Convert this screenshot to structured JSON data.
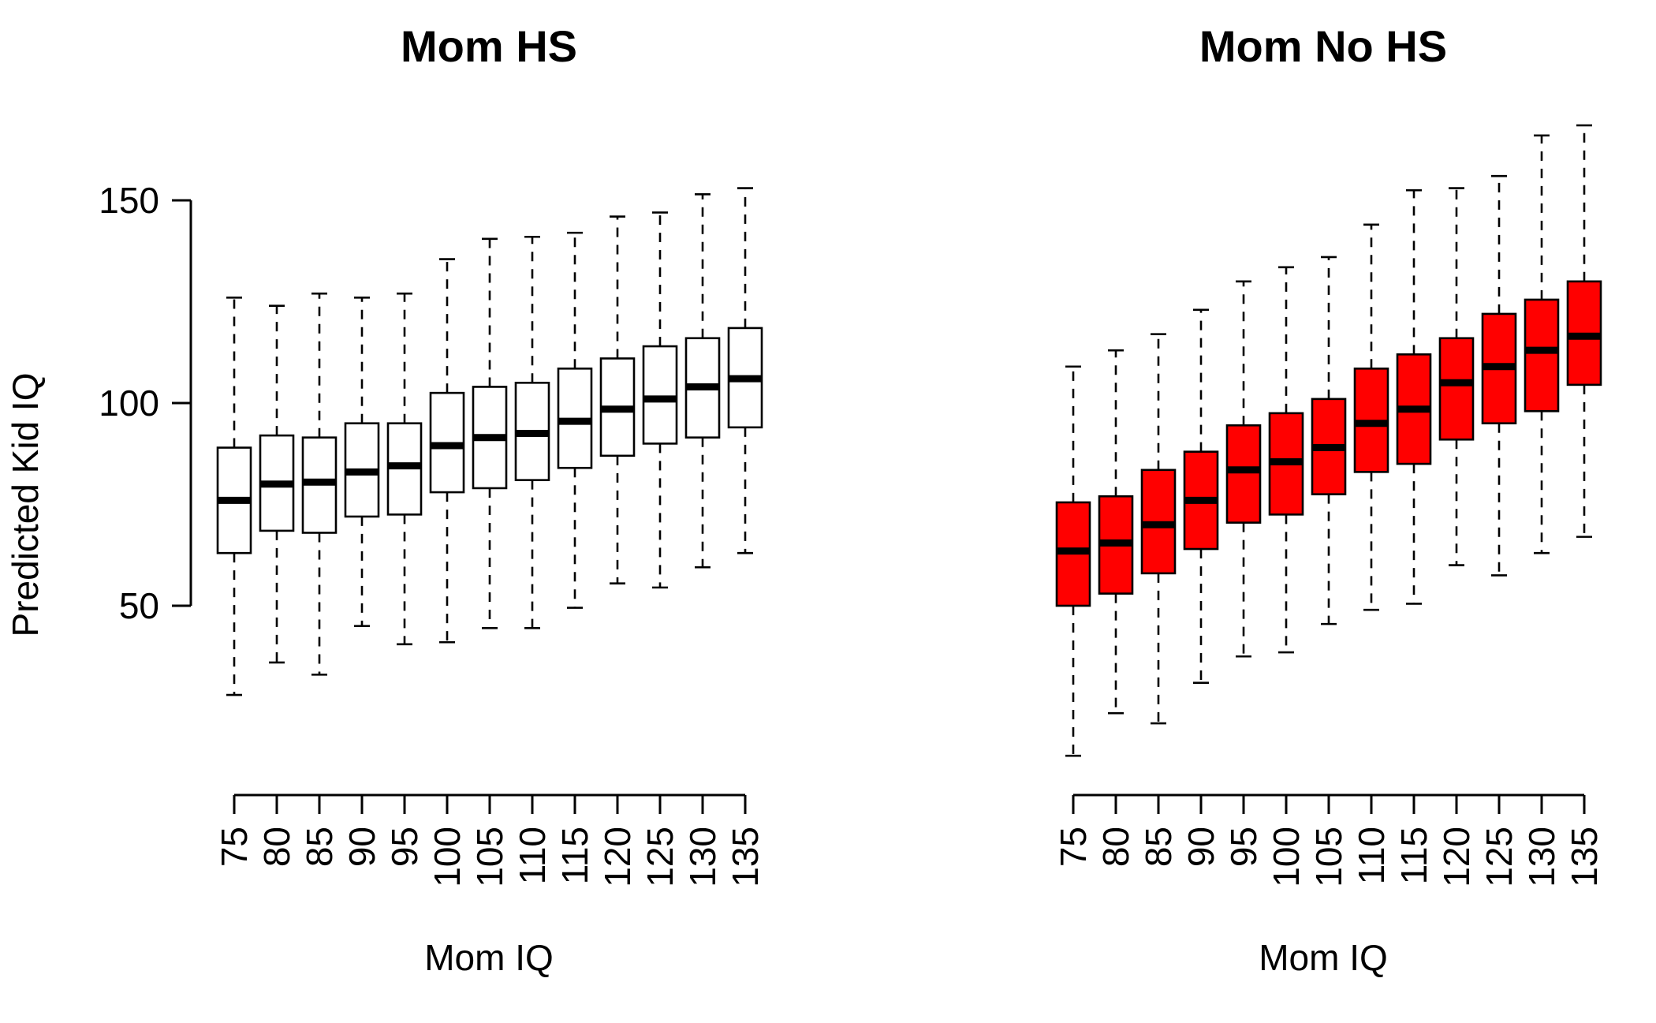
{
  "chart_data": [
    {
      "type": "boxplot",
      "title": "Mom HS",
      "xlabel": "Mom IQ",
      "ylabel": "Predicted Kid IQ",
      "ylim": [
        0,
        175
      ],
      "yticks": [
        50,
        100,
        150
      ],
      "box_color": "#ffffff",
      "categories": [
        "75",
        "80",
        "85",
        "90",
        "95",
        "100",
        "105",
        "110",
        "115",
        "120",
        "125",
        "130",
        "135"
      ],
      "boxes": [
        {
          "min": 28,
          "q1": 63,
          "median": 76,
          "q3": 89,
          "max": 126
        },
        {
          "min": 36,
          "q1": 68.5,
          "median": 80,
          "q3": 92,
          "max": 124
        },
        {
          "min": 33,
          "q1": 68,
          "median": 80.5,
          "q3": 91.5,
          "max": 127
        },
        {
          "min": 45,
          "q1": 72,
          "median": 83,
          "q3": 95,
          "max": 126
        },
        {
          "min": 40.5,
          "q1": 72.5,
          "median": 84.5,
          "q3": 95,
          "max": 127
        },
        {
          "min": 41,
          "q1": 78,
          "median": 89.5,
          "q3": 102.5,
          "max": 135.5
        },
        {
          "min": 44.5,
          "q1": 79,
          "median": 91.5,
          "q3": 104,
          "max": 140.5
        },
        {
          "min": 44.5,
          "q1": 81,
          "median": 92.5,
          "q3": 105,
          "max": 141
        },
        {
          "min": 49.5,
          "q1": 84,
          "median": 95.5,
          "q3": 108.5,
          "max": 142
        },
        {
          "min": 55.5,
          "q1": 87,
          "median": 98.5,
          "q3": 111,
          "max": 146
        },
        {
          "min": 54.5,
          "q1": 90,
          "median": 101,
          "q3": 114,
          "max": 147
        },
        {
          "min": 59.5,
          "q1": 91.5,
          "median": 104,
          "q3": 116,
          "max": 151.5
        },
        {
          "min": 63,
          "q1": 94,
          "median": 106,
          "q3": 118.5,
          "max": 153
        }
      ]
    },
    {
      "type": "boxplot",
      "title": "Mom No HS",
      "xlabel": "Mom IQ",
      "ylabel": "",
      "ylim": [
        0,
        175
      ],
      "yticks": [],
      "box_color": "#ff0000",
      "categories": [
        "75",
        "80",
        "85",
        "90",
        "95",
        "100",
        "105",
        "110",
        "115",
        "120",
        "125",
        "130",
        "135"
      ],
      "boxes": [
        {
          "min": 13,
          "q1": 50,
          "median": 63.5,
          "q3": 75.5,
          "max": 109
        },
        {
          "min": 23.5,
          "q1": 53,
          "median": 65.5,
          "q3": 77,
          "max": 113
        },
        {
          "min": 21,
          "q1": 58,
          "median": 70,
          "q3": 83.5,
          "max": 117
        },
        {
          "min": 31,
          "q1": 64,
          "median": 76,
          "q3": 88,
          "max": 123
        },
        {
          "min": 37.5,
          "q1": 70.5,
          "median": 83.5,
          "q3": 94.5,
          "max": 130
        },
        {
          "min": 38.5,
          "q1": 72.5,
          "median": 85.5,
          "q3": 97.5,
          "max": 133.5
        },
        {
          "min": 45.5,
          "q1": 77.5,
          "median": 89,
          "q3": 101,
          "max": 136
        },
        {
          "min": 49,
          "q1": 83,
          "median": 95,
          "q3": 108.5,
          "max": 144
        },
        {
          "min": 50.5,
          "q1": 85,
          "median": 98.5,
          "q3": 112,
          "max": 152.5
        },
        {
          "min": 60,
          "q1": 91,
          "median": 105,
          "q3": 116,
          "max": 153
        },
        {
          "min": 57.5,
          "q1": 95,
          "median": 109,
          "q3": 122,
          "max": 156
        },
        {
          "min": 63,
          "q1": 98,
          "median": 113,
          "q3": 125.5,
          "max": 166
        },
        {
          "min": 67,
          "q1": 104.5,
          "median": 116.5,
          "q3": 130,
          "max": 168.5
        }
      ]
    }
  ]
}
